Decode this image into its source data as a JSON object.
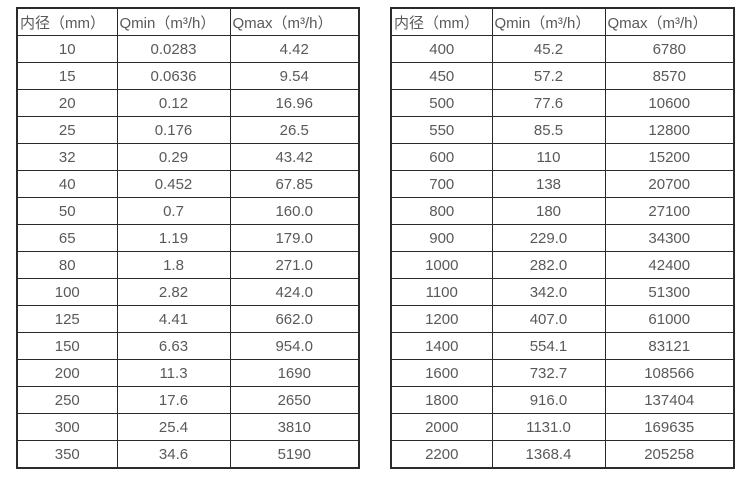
{
  "page": {
    "background_color": "#ffffff",
    "border_color": "#2b2b2b",
    "text_color": "#595959"
  },
  "tables": [
    {
      "name": "small-diameters",
      "headers": [
        "内径（mm）",
        "Qmin（m³/h）",
        "Qmax（m³/h）"
      ],
      "rows": [
        [
          "10",
          "0.0283",
          "4.42"
        ],
        [
          "15",
          "0.0636",
          "9.54"
        ],
        [
          "20",
          "0.12",
          "16.96"
        ],
        [
          "25",
          "0.176",
          "26.5"
        ],
        [
          "32",
          "0.29",
          "43.42"
        ],
        [
          "40",
          "0.452",
          "67.85"
        ],
        [
          "50",
          "0.7",
          "160.0"
        ],
        [
          "65",
          "1.19",
          "179.0"
        ],
        [
          "80",
          "1.8",
          "271.0"
        ],
        [
          "100",
          "2.82",
          "424.0"
        ],
        [
          "125",
          "4.41",
          "662.0"
        ],
        [
          "150",
          "6.63",
          "954.0"
        ],
        [
          "200",
          "11.3",
          "1690"
        ],
        [
          "250",
          "17.6",
          "2650"
        ],
        [
          "300",
          "25.4",
          "3810"
        ],
        [
          "350",
          "34.6",
          "5190"
        ]
      ]
    },
    {
      "name": "large-diameters",
      "headers": [
        "内径（mm）",
        "Qmin（m³/h）",
        "Qmax（m³/h）"
      ],
      "rows": [
        [
          "400",
          "45.2",
          "6780"
        ],
        [
          "450",
          "57.2",
          "8570"
        ],
        [
          "500",
          "77.6",
          "10600"
        ],
        [
          "550",
          "85.5",
          "12800"
        ],
        [
          "600",
          "110",
          "15200"
        ],
        [
          "700",
          "138",
          "20700"
        ],
        [
          "800",
          "180",
          "27100"
        ],
        [
          "900",
          "229.0",
          "34300"
        ],
        [
          "1000",
          "282.0",
          "42400"
        ],
        [
          "1100",
          "342.0",
          "51300"
        ],
        [
          "1200",
          "407.0",
          "61000"
        ],
        [
          "1400",
          "554.1",
          "83121"
        ],
        [
          "1600",
          "732.7",
          "108566"
        ],
        [
          "1800",
          "916.0",
          "137404"
        ],
        [
          "2000",
          "1131.0",
          "169635"
        ],
        [
          "2200",
          "1368.4",
          "205258"
        ]
      ]
    }
  ],
  "column_names": [
    "diameter",
    "qmin",
    "qmax"
  ]
}
